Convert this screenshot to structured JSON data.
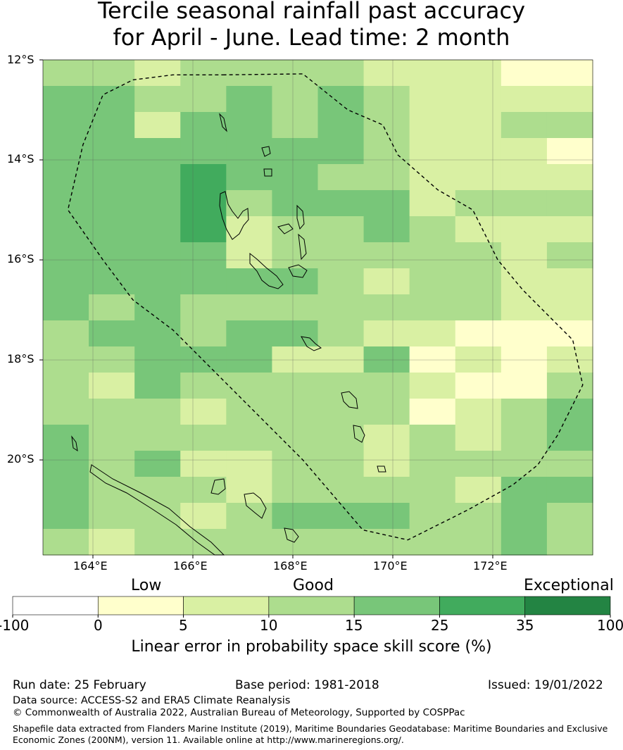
{
  "title_line1": "Tercile seasonal rainfall past accuracy",
  "title_line2": "for April - June. Lead time: 2 month",
  "map": {
    "lat_ticks": [
      "12°S",
      "14°S",
      "16°S",
      "18°S",
      "20°S"
    ],
    "lon_ticks": [
      "164°E",
      "166°E",
      "168°E",
      "170°E",
      "172°E"
    ],
    "lon_range": [
      163.0,
      174.0
    ],
    "lat_range": [
      -21.9,
      -12.0
    ],
    "skill_grid": [
      [
        3,
        3,
        2,
        3,
        3,
        3,
        3,
        2,
        2,
        2,
        1,
        1
      ],
      [
        4,
        4,
        3,
        3,
        4,
        3,
        4,
        3,
        2,
        2,
        2,
        2
      ],
      [
        4,
        4,
        2,
        4,
        4,
        3,
        4,
        3,
        2,
        2,
        3,
        3
      ],
      [
        4,
        4,
        4,
        4,
        4,
        4,
        4,
        3,
        2,
        2,
        2,
        1
      ],
      [
        4,
        4,
        4,
        5,
        4,
        4,
        3,
        3,
        2,
        2,
        2,
        2
      ],
      [
        4,
        4,
        4,
        5,
        3,
        4,
        4,
        4,
        2,
        3,
        3,
        3
      ],
      [
        4,
        4,
        4,
        5,
        2,
        3,
        3,
        4,
        3,
        2,
        2,
        2
      ],
      [
        4,
        4,
        4,
        4,
        2,
        3,
        3,
        3,
        3,
        3,
        2,
        3
      ],
      [
        4,
        4,
        4,
        4,
        4,
        4,
        3,
        2,
        3,
        3,
        2,
        2
      ],
      [
        4,
        3,
        4,
        3,
        3,
        3,
        3,
        3,
        3,
        3,
        2,
        2
      ],
      [
        3,
        4,
        4,
        3,
        4,
        4,
        3,
        2,
        2,
        1,
        1,
        1
      ],
      [
        3,
        3,
        4,
        4,
        4,
        2,
        2,
        4,
        1,
        2,
        1,
        2
      ],
      [
        3,
        2,
        4,
        3,
        3,
        3,
        3,
        3,
        2,
        1,
        1,
        3
      ],
      [
        3,
        3,
        3,
        2,
        3,
        3,
        3,
        3,
        1,
        2,
        3,
        4
      ],
      [
        4,
        3,
        3,
        3,
        3,
        3,
        3,
        2,
        3,
        2,
        3,
        4
      ],
      [
        4,
        3,
        4,
        2,
        2,
        3,
        3,
        2,
        3,
        3,
        3,
        3
      ],
      [
        4,
        3,
        3,
        3,
        2,
        3,
        3,
        3,
        3,
        2,
        4,
        4
      ],
      [
        4,
        3,
        3,
        2,
        3,
        4,
        4,
        4,
        3,
        3,
        4,
        3
      ],
      [
        3,
        2,
        3,
        3,
        3,
        3,
        3,
        3,
        3,
        3,
        4,
        3
      ]
    ],
    "eez_boundary": [
      [
        166.6,
        -12.3
      ],
      [
        168.2,
        -12.28
      ],
      [
        169.1,
        -13.0
      ],
      [
        169.8,
        -13.3
      ],
      [
        170.1,
        -13.9
      ],
      [
        170.9,
        -14.6
      ],
      [
        171.6,
        -15.0
      ],
      [
        172.1,
        -16.0
      ],
      [
        172.6,
        -16.6
      ],
      [
        173.0,
        -17.0
      ],
      [
        173.6,
        -17.6
      ],
      [
        173.8,
        -18.5
      ],
      [
        173.3,
        -19.5
      ],
      [
        172.9,
        -20.1
      ],
      [
        172.4,
        -20.5
      ],
      [
        171.5,
        -21.0
      ],
      [
        170.9,
        -21.3
      ],
      [
        170.3,
        -21.6
      ],
      [
        169.4,
        -21.4
      ],
      [
        168.8,
        -20.7
      ],
      [
        168.2,
        -20.0
      ],
      [
        167.6,
        -19.4
      ],
      [
        167.0,
        -18.8
      ],
      [
        166.3,
        -18.1
      ],
      [
        165.6,
        -17.4
      ],
      [
        164.8,
        -16.8
      ],
      [
        164.2,
        -16.0
      ],
      [
        163.5,
        -15.0
      ],
      [
        163.8,
        -13.7
      ],
      [
        164.2,
        -12.7
      ],
      [
        164.8,
        -12.4
      ],
      [
        165.6,
        -12.3
      ],
      [
        166.6,
        -12.3
      ]
    ]
  },
  "colorbar": {
    "category_labels": [
      "Low",
      "Good",
      "Exceptional"
    ],
    "bounds": [
      "-100",
      "0",
      "5",
      "10",
      "15",
      "25",
      "35",
      "100"
    ],
    "colors": [
      "#ffffff",
      "#ffffcc",
      "#d9f0a3",
      "#addd8e",
      "#78c679",
      "#41ab5d",
      "#238443"
    ],
    "axis_label": "Linear error in probability space skill score (%)"
  },
  "footer": {
    "run_date": "Run date: 25 February",
    "base_period": "Base period: 1981-2018",
    "issued": "Issued: 19/01/2022",
    "data_source": "Data source: ACCESS-S2 and ERA5 Climate Reanalysis",
    "copyright": "© Commonwealth of Australia 2022, Australian Bureau of Meteorology, Supported by COSPPac",
    "shapefile_note": "Shapefile data extracted from Flanders Marine Institute (2019), Maritime Boundaries Geodatabase: Maritime Boundaries and Exclusive Economic Zones (200NM), version 11. Available online at http://www.marineregions.org/."
  }
}
